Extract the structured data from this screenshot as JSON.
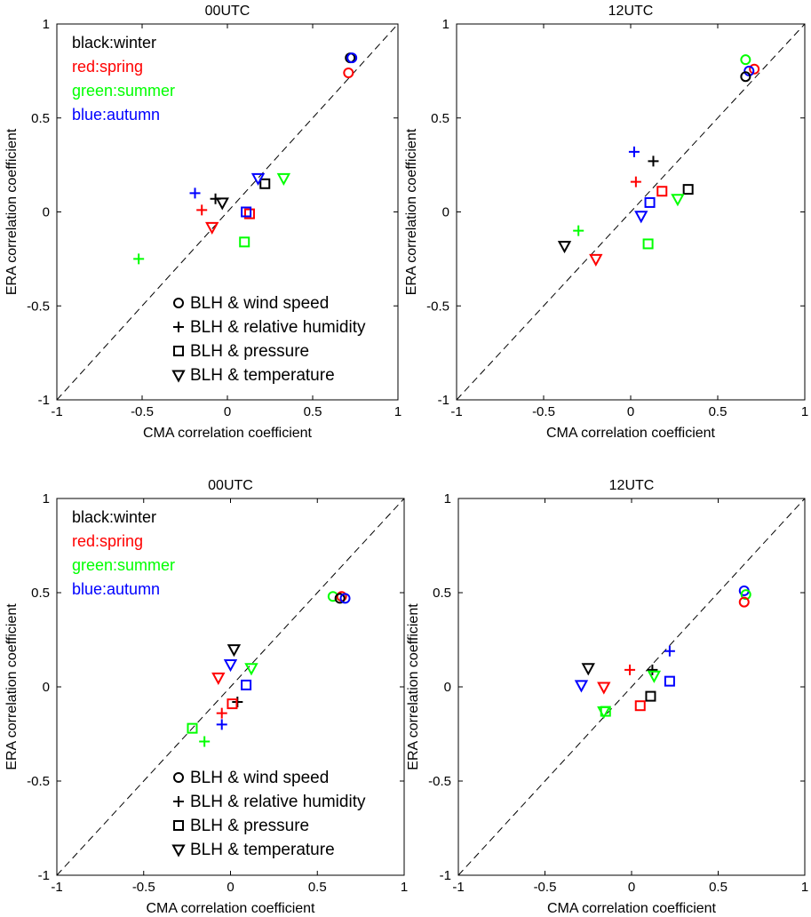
{
  "colors": {
    "winter": "#000000",
    "spring": "#ff0000",
    "summer": "#00ff00",
    "autumn": "#0000ff"
  },
  "season_legend": [
    {
      "key": "winter",
      "text": "black:winter"
    },
    {
      "key": "spring",
      "text": "red:spring"
    },
    {
      "key": "summer",
      "text": "green:summer"
    },
    {
      "key": "autumn",
      "text": "blue:autumn"
    }
  ],
  "marker_legend": [
    {
      "marker": "circle",
      "glyph": "o",
      "text": "BLH & wind speed"
    },
    {
      "marker": "plus",
      "glyph": "+",
      "text": "BLH & relative humidity"
    },
    {
      "marker": "square",
      "glyph": "□",
      "text": "BLH & pressure"
    },
    {
      "marker": "triangle",
      "glyph": "▽",
      "text": "BLH & temperature"
    }
  ],
  "chart_data": [
    {
      "type": "scatter",
      "title": "00UTC",
      "xlabel": "CMA correlation coefficient",
      "ylabel": "ERA correlation coefficient",
      "xlim": [
        -1,
        1
      ],
      "ylim": [
        -1,
        1
      ],
      "xticks": [
        "-1",
        "-0.5",
        "0",
        "0.5",
        "1"
      ],
      "yticks": [
        "-1",
        "-0.5",
        "0",
        "0.5",
        "1"
      ],
      "reference_line": "y = x (dashed)",
      "show_season_legend": true,
      "show_marker_legend": true,
      "points": [
        {
          "marker": "circle",
          "season": "winter",
          "x": 0.72,
          "y": 0.82
        },
        {
          "marker": "circle",
          "season": "autumn",
          "x": 0.73,
          "y": 0.82
        },
        {
          "marker": "circle",
          "season": "spring",
          "x": 0.71,
          "y": 0.74
        },
        {
          "marker": "plus",
          "season": "autumn",
          "x": -0.19,
          "y": 0.1
        },
        {
          "marker": "plus",
          "season": "spring",
          "x": -0.15,
          "y": 0.01
        },
        {
          "marker": "plus",
          "season": "winter",
          "x": -0.07,
          "y": 0.07
        },
        {
          "marker": "plus",
          "season": "summer",
          "x": -0.52,
          "y": -0.25
        },
        {
          "marker": "square",
          "season": "winter",
          "x": 0.22,
          "y": 0.15
        },
        {
          "marker": "square",
          "season": "spring",
          "x": 0.13,
          "y": -0.01
        },
        {
          "marker": "square",
          "season": "autumn",
          "x": 0.11,
          "y": 0.0
        },
        {
          "marker": "square",
          "season": "summer",
          "x": 0.1,
          "y": -0.16
        },
        {
          "marker": "triangle",
          "season": "winter",
          "x": -0.03,
          "y": 0.05
        },
        {
          "marker": "triangle",
          "season": "spring",
          "x": -0.09,
          "y": -0.08
        },
        {
          "marker": "triangle",
          "season": "autumn",
          "x": 0.18,
          "y": 0.18
        },
        {
          "marker": "triangle",
          "season": "summer",
          "x": 0.33,
          "y": 0.18
        }
      ]
    },
    {
      "type": "scatter",
      "title": "12UTC",
      "xlabel": "CMA correlation coefficient",
      "ylabel": "ERA correlation coefficient",
      "xlim": [
        -1,
        1
      ],
      "ylim": [
        -1,
        1
      ],
      "xticks": [
        "-1",
        "-0.5",
        "0",
        "0.5",
        "1"
      ],
      "yticks": [
        "-1",
        "-0.5",
        "0",
        "0.5",
        "1"
      ],
      "reference_line": "y = x (dashed)",
      "show_season_legend": false,
      "show_marker_legend": false,
      "points": [
        {
          "marker": "circle",
          "season": "summer",
          "x": 0.66,
          "y": 0.81
        },
        {
          "marker": "circle",
          "season": "spring",
          "x": 0.71,
          "y": 0.76
        },
        {
          "marker": "circle",
          "season": "autumn",
          "x": 0.68,
          "y": 0.75
        },
        {
          "marker": "circle",
          "season": "winter",
          "x": 0.66,
          "y": 0.72
        },
        {
          "marker": "plus",
          "season": "autumn",
          "x": 0.02,
          "y": 0.32
        },
        {
          "marker": "plus",
          "season": "winter",
          "x": 0.13,
          "y": 0.27
        },
        {
          "marker": "plus",
          "season": "spring",
          "x": 0.03,
          "y": 0.16
        },
        {
          "marker": "plus",
          "season": "summer",
          "x": -0.3,
          "y": -0.1
        },
        {
          "marker": "square",
          "season": "winter",
          "x": 0.33,
          "y": 0.12
        },
        {
          "marker": "square",
          "season": "spring",
          "x": 0.18,
          "y": 0.11
        },
        {
          "marker": "square",
          "season": "autumn",
          "x": 0.11,
          "y": 0.05
        },
        {
          "marker": "square",
          "season": "summer",
          "x": 0.1,
          "y": -0.17
        },
        {
          "marker": "triangle",
          "season": "summer",
          "x": 0.27,
          "y": 0.07
        },
        {
          "marker": "triangle",
          "season": "autumn",
          "x": 0.06,
          "y": -0.02
        },
        {
          "marker": "triangle",
          "season": "winter",
          "x": -0.38,
          "y": -0.18
        },
        {
          "marker": "triangle",
          "season": "spring",
          "x": -0.2,
          "y": -0.25
        }
      ]
    },
    {
      "type": "scatter",
      "title": "00UTC",
      "xlabel": "CMA correlation coefficient",
      "ylabel": "ERA correlation coefficient",
      "xlim": [
        -1,
        1
      ],
      "ylim": [
        -1,
        1
      ],
      "xticks": [
        "-1",
        "-0.5",
        "0",
        "0.5",
        "1"
      ],
      "yticks": [
        "-1",
        "-0.5",
        "0",
        "0.5",
        "1"
      ],
      "reference_line": "y = x (dashed)",
      "show_season_legend": true,
      "show_marker_legend": true,
      "points": [
        {
          "marker": "circle",
          "season": "summer",
          "x": 0.59,
          "y": 0.48
        },
        {
          "marker": "circle",
          "season": "spring",
          "x": 0.64,
          "y": 0.48
        },
        {
          "marker": "circle",
          "season": "winter",
          "x": 0.63,
          "y": 0.47
        },
        {
          "marker": "circle",
          "season": "autumn",
          "x": 0.66,
          "y": 0.47
        },
        {
          "marker": "plus",
          "season": "winter",
          "x": 0.04,
          "y": -0.08
        },
        {
          "marker": "plus",
          "season": "spring",
          "x": -0.05,
          "y": -0.14
        },
        {
          "marker": "plus",
          "season": "autumn",
          "x": -0.05,
          "y": -0.2
        },
        {
          "marker": "plus",
          "season": "summer",
          "x": -0.15,
          "y": -0.29
        },
        {
          "marker": "square",
          "season": "autumn",
          "x": 0.09,
          "y": 0.01
        },
        {
          "marker": "square",
          "season": "spring",
          "x": 0.01,
          "y": -0.09
        },
        {
          "marker": "square",
          "season": "summer",
          "x": -0.22,
          "y": -0.22
        },
        {
          "marker": "triangle",
          "season": "winter",
          "x": 0.02,
          "y": 0.2
        },
        {
          "marker": "triangle",
          "season": "autumn",
          "x": 0.0,
          "y": 0.12
        },
        {
          "marker": "triangle",
          "season": "summer",
          "x": 0.12,
          "y": 0.1
        },
        {
          "marker": "triangle",
          "season": "spring",
          "x": -0.07,
          "y": 0.05
        }
      ]
    },
    {
      "type": "scatter",
      "title": "12UTC",
      "xlabel": "CMA correlation coefficient",
      "ylabel": "ERA correlation coefficient",
      "xlim": [
        -1,
        1
      ],
      "ylim": [
        -1,
        1
      ],
      "xticks": [
        "-1",
        "-0.5",
        "0",
        "0.5",
        "1"
      ],
      "yticks": [
        "-1",
        "-0.5",
        "0",
        "0.5",
        "1"
      ],
      "reference_line": "y = x (dashed)",
      "show_season_legend": false,
      "show_marker_legend": false,
      "points": [
        {
          "marker": "circle",
          "season": "autumn",
          "x": 0.65,
          "y": 0.51
        },
        {
          "marker": "circle",
          "season": "summer",
          "x": 0.66,
          "y": 0.49
        },
        {
          "marker": "circle",
          "season": "spring",
          "x": 0.65,
          "y": 0.45
        },
        {
          "marker": "plus",
          "season": "autumn",
          "x": 0.22,
          "y": 0.19
        },
        {
          "marker": "plus",
          "season": "spring",
          "x": -0.01,
          "y": 0.09
        },
        {
          "marker": "plus",
          "season": "winter",
          "x": 0.12,
          "y": 0.09
        },
        {
          "marker": "square",
          "season": "autumn",
          "x": 0.22,
          "y": 0.03
        },
        {
          "marker": "square",
          "season": "winter",
          "x": 0.11,
          "y": -0.05
        },
        {
          "marker": "square",
          "season": "spring",
          "x": 0.05,
          "y": -0.1
        },
        {
          "marker": "square",
          "season": "summer",
          "x": -0.15,
          "y": -0.13
        },
        {
          "marker": "triangle",
          "season": "winter",
          "x": -0.25,
          "y": 0.1
        },
        {
          "marker": "triangle",
          "season": "summer",
          "x": 0.13,
          "y": 0.06
        },
        {
          "marker": "triangle",
          "season": "autumn",
          "x": -0.29,
          "y": 0.01
        },
        {
          "marker": "triangle",
          "season": "spring",
          "x": -0.16,
          "y": 0.0
        },
        {
          "marker": "triangle",
          "season": "summer",
          "x": -0.16,
          "y": -0.13
        }
      ]
    }
  ]
}
